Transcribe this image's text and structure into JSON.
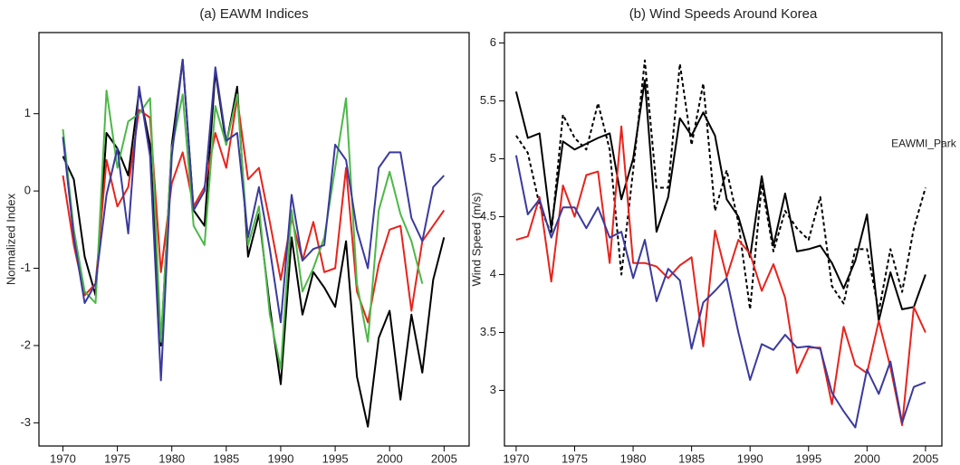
{
  "chart_data": [
    {
      "type": "line",
      "title": "(a) EAWM Indices",
      "ylabel": "Normalized Index",
      "x": [
        1970,
        1971,
        1972,
        1973,
        1974,
        1975,
        1976,
        1977,
        1978,
        1979,
        1980,
        1981,
        1982,
        1983,
        1984,
        1985,
        1986,
        1987,
        1988,
        1989,
        1990,
        1991,
        1992,
        1993,
        1994,
        1995,
        1996,
        1997,
        1998,
        1999,
        2000,
        2001,
        2002,
        2003,
        2004,
        2005
      ],
      "series": [
        {
          "color": "#000000",
          "values": [
            0.45,
            0.15,
            -0.85,
            -1.35,
            0.75,
            0.55,
            0.2,
            1.3,
            0.6,
            -2.0,
            0.6,
            1.7,
            -0.25,
            -0.45,
            1.55,
            0.6,
            1.35,
            -0.85,
            -0.3,
            -1.5,
            -2.5,
            -0.6,
            -1.6,
            -1.05,
            -1.25,
            -1.5,
            -0.65,
            -2.4,
            -3.05,
            -1.9,
            -1.55,
            -2.7,
            -1.6,
            -2.35,
            -1.15,
            -0.6
          ]
        },
        {
          "color": "#e8231c",
          "values": [
            0.2,
            -0.7,
            -1.35,
            -1.2,
            0.4,
            -0.2,
            0.05,
            1.05,
            0.95,
            -1.05,
            0.1,
            0.5,
            -0.2,
            0.05,
            0.75,
            0.3,
            1.2,
            0.15,
            0.3,
            -0.4,
            -1.15,
            -0.35,
            -0.9,
            -0.4,
            -1.05,
            -1.0,
            0.3,
            -1.3,
            -1.7,
            -0.95,
            -0.5,
            -0.45,
            -1.55,
            -0.65,
            -0.45,
            -0.25
          ]
        },
        {
          "color": "#4db848",
          "values": [
            0.8,
            -0.5,
            -1.3,
            -1.45,
            1.3,
            0.3,
            0.9,
            1.0,
            1.2,
            -1.95,
            0.55,
            1.25,
            -0.45,
            -0.7,
            1.1,
            0.6,
            1.25,
            -0.7,
            -0.2,
            -1.6,
            -2.3,
            -0.25,
            -1.3,
            -1.0,
            -0.6,
            0.3,
            1.2,
            -1.2,
            -1.95,
            -0.25,
            0.25,
            -0.3,
            -0.65,
            -1.2,
            null,
            null
          ]
        },
        {
          "color": "#3a3a9e",
          "values": [
            0.7,
            -0.6,
            -1.45,
            -1.2,
            -0.05,
            0.55,
            -0.55,
            1.35,
            0.45,
            -2.45,
            0.45,
            1.7,
            -0.25,
            0.0,
            1.6,
            0.65,
            0.75,
            -0.6,
            0.05,
            -0.75,
            -1.7,
            -0.05,
            -0.9,
            -0.75,
            -0.7,
            0.6,
            0.4,
            -0.5,
            -1.0,
            0.3,
            0.5,
            0.5,
            -0.35,
            -0.65,
            0.05,
            0.2
          ]
        }
      ],
      "xlim": [
        1967.8,
        2007.3
      ],
      "xticks": [
        1970,
        1975,
        1980,
        1985,
        1990,
        1995,
        2000,
        2005
      ],
      "ylim": [
        -3.3,
        2.05
      ],
      "yticks": [
        -3,
        -2,
        -1,
        0,
        1
      ]
    },
    {
      "type": "line",
      "title": "(b) Wind Speeds Around Korea",
      "ylabel": "Wind Speed (m/s)",
      "annotation": "EAWMI_Park",
      "x": [
        1970,
        1971,
        1972,
        1973,
        1974,
        1975,
        1976,
        1977,
        1978,
        1979,
        1980,
        1981,
        1982,
        1983,
        1984,
        1985,
        1986,
        1987,
        1988,
        1989,
        1990,
        1991,
        1992,
        1993,
        1994,
        1995,
        1996,
        1997,
        1998,
        1999,
        2000,
        2001,
        2002,
        2003,
        2004,
        2005
      ],
      "series": [
        {
          "color": "#000000",
          "values": [
            5.58,
            5.18,
            5.22,
            4.4,
            5.15,
            5.08,
            5.13,
            5.18,
            5.22,
            4.65,
            5.0,
            5.68,
            4.37,
            4.67,
            5.35,
            5.2,
            5.4,
            5.2,
            4.65,
            4.5,
            4.15,
            4.85,
            4.25,
            4.7,
            4.2,
            4.22,
            4.25,
            4.1,
            3.88,
            4.12,
            4.52,
            3.6,
            4.02,
            3.7,
            3.72,
            4.0
          ]
        },
        {
          "color": "#000000",
          "dashed": true,
          "values": [
            5.2,
            5.05,
            4.6,
            4.35,
            5.38,
            5.18,
            5.08,
            5.48,
            5.08,
            4.0,
            4.9,
            5.85,
            4.75,
            4.75,
            5.82,
            5.12,
            5.65,
            4.55,
            4.9,
            4.45,
            3.7,
            4.78,
            4.2,
            4.55,
            4.4,
            4.3,
            4.67,
            3.9,
            3.75,
            4.22,
            4.22,
            3.68,
            4.22,
            3.85,
            4.4,
            4.75
          ]
        },
        {
          "color": "#e8231c",
          "values": [
            4.3,
            4.33,
            4.67,
            3.94,
            4.77,
            4.5,
            4.86,
            4.89,
            4.1,
            5.28,
            4.1,
            4.1,
            4.07,
            3.97,
            4.08,
            4.15,
            3.38,
            4.38,
            3.98,
            4.3,
            4.18,
            3.86,
            4.09,
            3.8,
            3.15,
            3.37,
            3.37,
            2.88,
            3.55,
            3.22,
            3.15,
            3.6,
            3.2,
            2.7,
            3.72,
            3.5
          ]
        },
        {
          "color": "#3a3a9e",
          "values": [
            5.03,
            4.52,
            4.65,
            4.32,
            4.58,
            4.58,
            4.4,
            4.58,
            4.32,
            4.37,
            3.97,
            4.3,
            3.77,
            4.05,
            3.95,
            3.36,
            3.76,
            3.86,
            3.97,
            3.5,
            3.09,
            3.4,
            3.35,
            3.48,
            3.37,
            3.38,
            3.36,
            2.98,
            2.82,
            2.68,
            3.18,
            2.97,
            3.25,
            2.72,
            3.03,
            3.07
          ]
        }
      ],
      "xlim": [
        1969,
        2006.4
      ],
      "xticks": [
        1970,
        1975,
        1980,
        1985,
        1990,
        1995,
        2000,
        2005
      ],
      "ylim": [
        2.52,
        6.09
      ],
      "yticks": [
        3,
        3.5,
        4,
        4.5,
        5,
        5.5,
        6
      ]
    }
  ]
}
